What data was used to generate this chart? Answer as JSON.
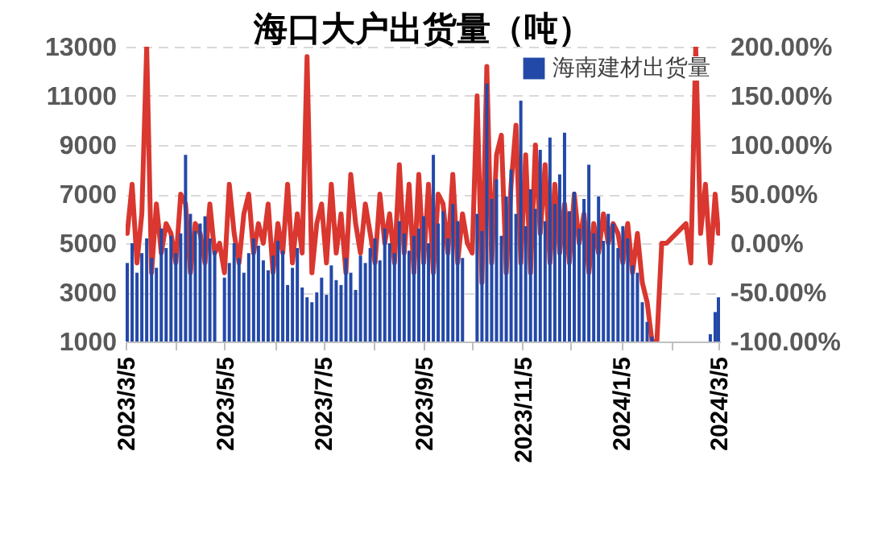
{
  "chart_data": {
    "type": "bar",
    "title": "海口大户出货量（吨）",
    "x": [
      "2023-03-06",
      "2023-03-09",
      "2023-03-12",
      "2023-03-15",
      "2023-03-18",
      "2023-03-21",
      "2023-03-24",
      "2023-03-27",
      "2023-03-30",
      "2023-04-02",
      "2023-04-05",
      "2023-04-08",
      "2023-04-11",
      "2023-04-14",
      "2023-04-17",
      "2023-04-20",
      "2023-04-23",
      "2023-04-26",
      "2023-04-29",
      "2023-05-02",
      "2023-05-05",
      "2023-05-08",
      "2023-05-11",
      "2023-05-14",
      "2023-05-17",
      "2023-05-20",
      "2023-05-23",
      "2023-05-26",
      "2023-05-29",
      "2023-06-01",
      "2023-06-04",
      "2023-06-07",
      "2023-06-10",
      "2023-06-13",
      "2023-06-16",
      "2023-06-19",
      "2023-06-22",
      "2023-06-25",
      "2023-06-28",
      "2023-07-01",
      "2023-07-04",
      "2023-07-07",
      "2023-07-10",
      "2023-07-13",
      "2023-07-16",
      "2023-07-19",
      "2023-07-22",
      "2023-07-25",
      "2023-07-28",
      "2023-07-31",
      "2023-08-03",
      "2023-08-06",
      "2023-08-09",
      "2023-08-12",
      "2023-08-15",
      "2023-08-18",
      "2023-08-21",
      "2023-08-24",
      "2023-08-27",
      "2023-08-30",
      "2023-09-02",
      "2023-09-05",
      "2023-09-08",
      "2023-09-11",
      "2023-09-14",
      "2023-09-17",
      "2023-09-20",
      "2023-09-23",
      "2023-09-26",
      "2023-09-29",
      "2023-10-02",
      "2023-10-05",
      "2023-10-08",
      "2023-10-11",
      "2023-10-14",
      "2023-10-17",
      "2023-10-20",
      "2023-10-23",
      "2023-10-26",
      "2023-10-29",
      "2023-11-01",
      "2023-11-04",
      "2023-11-07",
      "2023-11-10",
      "2023-11-13",
      "2023-11-16",
      "2023-11-19",
      "2023-11-22",
      "2023-11-25",
      "2023-11-28",
      "2023-12-01",
      "2023-12-04",
      "2023-12-07",
      "2023-12-10",
      "2023-12-13",
      "2023-12-16",
      "2023-12-19",
      "2023-12-22",
      "2023-12-25",
      "2023-12-28",
      "2023-12-31",
      "2024-01-03",
      "2024-01-06",
      "2024-01-09",
      "2024-01-12",
      "2024-01-15",
      "2024-01-18",
      "2024-01-21",
      "2024-01-24",
      "2024-01-27",
      "2024-01-30",
      "2024-02-02",
      "2024-02-05",
      "2024-02-08",
      "2024-02-11",
      "2024-02-14",
      "2024-02-17",
      "2024-02-20",
      "2024-02-23",
      "2024-02-26",
      "2024-02-29",
      "2024-03-03",
      "2024-03-05"
    ],
    "series": [
      {
        "name": "海南建材出货量",
        "type": "bar",
        "color": "#2349a8",
        "values": [
          4200,
          5000,
          3800,
          4600,
          5200,
          4400,
          4000,
          5600,
          4800,
          5300,
          4600,
          5400,
          8600,
          6200,
          5500,
          5800,
          6100,
          5200,
          4700,
          null,
          3600,
          4200,
          5000,
          4400,
          3800,
          4600,
          5200,
          4900,
          4300,
          3900,
          4500,
          5100,
          4700,
          3300,
          4000,
          4800,
          3200,
          2800,
          2600,
          3000,
          3600,
          2900,
          4100,
          3500,
          3300,
          4400,
          3800,
          3100,
          4500,
          4200,
          4800,
          5200,
          4300,
          5600,
          5000,
          4600,
          5900,
          5400,
          4700,
          5300,
          5600,
          6100,
          5000,
          8600,
          5800,
          6300,
          5200,
          6600,
          5900,
          4400,
          null,
          null,
          6200,
          5500,
          11500,
          6800,
          7600,
          5300,
          6900,
          8000,
          6200,
          10800,
          5700,
          7200,
          6400,
          8800,
          5900,
          9300,
          6600,
          7800,
          9500,
          6300,
          7100,
          5600,
          6800,
          8200,
          5400,
          6900,
          5100,
          6200,
          5800,
          4800,
          5700,
          5200,
          4100,
          3800,
          2600,
          1800,
          1200,
          null,
          null,
          null,
          null,
          null,
          null,
          null,
          null,
          null,
          null,
          null,
          1300,
          2200,
          2800
        ]
      },
      {
        "type": "line",
        "axis": "y2",
        "color": "#d9372f",
        "line_style": "solid",
        "values": [
          10,
          60,
          -20,
          30,
          200,
          -30,
          40,
          -10,
          20,
          10,
          -20,
          50,
          40,
          -30,
          20,
          10,
          -20,
          40,
          -10,
          0,
          -30,
          60,
          10,
          -20,
          30,
          50,
          -10,
          20,
          0,
          40,
          -30,
          20,
          -10,
          60,
          -20,
          30,
          -10,
          190,
          -30,
          20,
          40,
          -20,
          60,
          -10,
          30,
          -30,
          70,
          20,
          -10,
          40,
          10,
          -20,
          50,
          0,
          30,
          -20,
          80,
          -10,
          60,
          -30,
          70,
          -20,
          60,
          -30,
          50,
          40,
          -10,
          70,
          -20,
          30,
          0,
          -10,
          150,
          -40,
          180,
          -20,
          90,
          110,
          -30,
          60,
          120,
          -20,
          90,
          -30,
          100,
          10,
          80,
          -20,
          60,
          -10,
          40,
          -20,
          50,
          0,
          30,
          -30,
          20,
          -10,
          30,
          0,
          20,
          10,
          -20,
          20,
          -30,
          10,
          -40,
          -60,
          -100,
          -100,
          0,
          0,
          5,
          10,
          15,
          20,
          -20,
          200,
          10,
          60,
          -20,
          50,
          10
        ]
      }
    ],
    "xlim": [
      "2023-03-05",
      "2024-03-06"
    ],
    "xticks": [
      {
        "value": "2023-03-05",
        "label": "2023/3/5"
      },
      {
        "value": "2023-04-05",
        "label": null
      },
      {
        "value": "2023-05-05",
        "label": "2023/5/5"
      },
      {
        "value": "2023-06-05",
        "label": null
      },
      {
        "value": "2023-07-05",
        "label": "2023/7/5"
      },
      {
        "value": "2023-08-05",
        "label": null
      },
      {
        "value": "2023-09-05",
        "label": "2023/9/5"
      },
      {
        "value": "2023-10-05",
        "label": null
      },
      {
        "value": "2023-11-05",
        "label": "2023/11/5"
      },
      {
        "value": "2023-12-05",
        "label": null
      },
      {
        "value": "2024-01-05",
        "label": "2024/1/5"
      },
      {
        "value": "2024-02-05",
        "label": null
      },
      {
        "value": "2024-03-05",
        "label": "2024/3/5"
      }
    ],
    "ylim": [
      1000,
      13000
    ],
    "yticks": [
      1000,
      3000,
      5000,
      7000,
      9000,
      11000,
      13000
    ],
    "y2lim": [
      -100,
      200
    ],
    "y2ticks": [
      {
        "value": -100,
        "label": "-100.00%"
      },
      {
        "value": -50,
        "label": "-50.00%"
      },
      {
        "value": 0,
        "label": "0.00%"
      },
      {
        "value": 50,
        "label": "50.00%"
      },
      {
        "value": 100,
        "label": "100.00%"
      },
      {
        "value": 150,
        "label": "150.00%"
      },
      {
        "value": 200,
        "label": "200.00%"
      }
    ],
    "grid": "y",
    "legend": "top right"
  }
}
